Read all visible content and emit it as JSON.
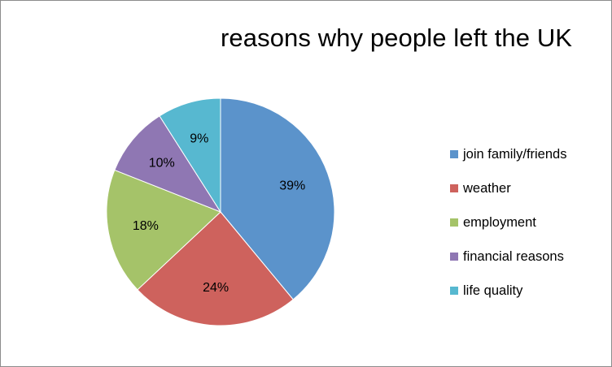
{
  "chart_data": {
    "type": "pie",
    "title": "reasons why people left the UK",
    "categories": [
      "join family/friends",
      "weather",
      "employment",
      "financial reasons",
      "life quality"
    ],
    "values": [
      39,
      24,
      18,
      10,
      9
    ],
    "data_labels": [
      "39%",
      "24%",
      "18%",
      "10%",
      "9%"
    ],
    "colors": [
      "#5b93cb",
      "#ce625d",
      "#a5c369",
      "#8f77b3",
      "#57b8d0"
    ],
    "start_angle_deg": 0,
    "direction": "clockwise",
    "legend_position": "right"
  }
}
